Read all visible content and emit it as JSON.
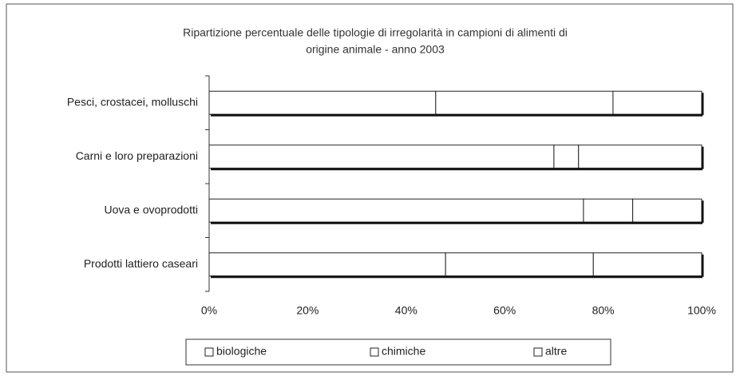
{
  "chart_data": {
    "type": "stacked-bar-horizontal",
    "title": [
      "Ripartizione percentuale delle tipologie di irregolarità in campioni di alimenti di",
      "origine animale - anno 2003"
    ],
    "categories": [
      "Pesci, crostacei, molluschi",
      "Carni e loro preparazioni",
      "Uova e ovoprodotti",
      "Prodotti lattiero caseari"
    ],
    "series": [
      {
        "name": "biologiche",
        "color": "#ffffff",
        "values": [
          46,
          70,
          76,
          48
        ]
      },
      {
        "name": "chimiche",
        "color": "#ffffff",
        "values": [
          36,
          5,
          10,
          30
        ]
      },
      {
        "name": "altre",
        "color": "#ffffff",
        "values": [
          18,
          25,
          14,
          22
        ]
      }
    ],
    "xlim": [
      0,
      100
    ],
    "xticks": [
      {
        "value": 0,
        "label": "0%"
      },
      {
        "value": 20,
        "label": "20%"
      },
      {
        "value": 40,
        "label": "40%"
      },
      {
        "value": 60,
        "label": "60%"
      },
      {
        "value": 80,
        "label": "80%"
      },
      {
        "value": 100,
        "label": "100%"
      }
    ],
    "legend": "bottom"
  }
}
